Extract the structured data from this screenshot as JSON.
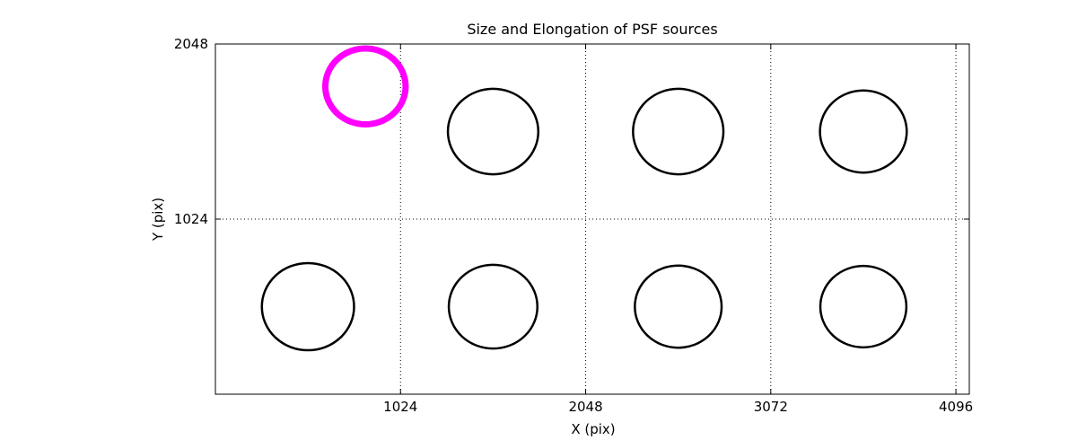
{
  "figure": {
    "background": "#ffffff",
    "axis_color": "#000000"
  },
  "chart_data": {
    "type": "scatter",
    "title": "Size and Elongation of PSF sources",
    "xlabel": "X (pix)",
    "ylabel": "Y (pix)",
    "xlim": [
      0,
      4170
    ],
    "ylim": [
      0,
      2048
    ],
    "xticks": [
      1024,
      2048,
      3072,
      4096
    ],
    "yticks": [
      1024,
      2048
    ],
    "grid": {
      "visible": true,
      "style": "dotted",
      "color": "#000000"
    },
    "legend": "none",
    "sources": [
      {
        "x": 830,
        "y": 1800,
        "radius": 222,
        "color": "#ff00ff",
        "linewidth": 7,
        "flagged": true
      },
      {
        "x": 1536,
        "y": 1536,
        "radius": 250,
        "color": "#000000",
        "linewidth": 2.5,
        "flagged": false
      },
      {
        "x": 2560,
        "y": 1536,
        "radius": 250,
        "color": "#000000",
        "linewidth": 2.5,
        "flagged": false
      },
      {
        "x": 3584,
        "y": 1536,
        "radius": 240,
        "color": "#000000",
        "linewidth": 2.5,
        "flagged": false
      },
      {
        "x": 512,
        "y": 512,
        "radius": 255,
        "color": "#000000",
        "linewidth": 2.5,
        "flagged": false
      },
      {
        "x": 1536,
        "y": 512,
        "radius": 245,
        "color": "#000000",
        "linewidth": 2.5,
        "flagged": false
      },
      {
        "x": 2560,
        "y": 512,
        "radius": 240,
        "color": "#000000",
        "linewidth": 2.5,
        "flagged": false
      },
      {
        "x": 3584,
        "y": 512,
        "radius": 238,
        "color": "#000000",
        "linewidth": 2.5,
        "flagged": false
      }
    ]
  }
}
